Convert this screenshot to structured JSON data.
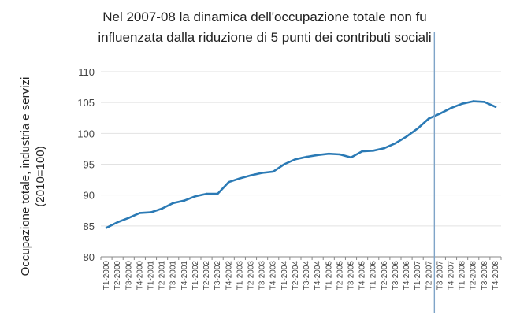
{
  "chart_data": {
    "type": "line",
    "title": "Nel 2007-08 la dinamica dell'occupazione totale non fu influenzata dalla riduzione di 5 punti dei contributi sociali",
    "title_lines": [
      "Nel 2007-08 la dinamica dell'occupazione totale non fu",
      "influenzata dalla riduzione di 5 punti dei contributi sociali"
    ],
    "ylabel": "Occupazione totale, industria e servizi (2010=100)",
    "ylabel_lines": [
      "Occupazione totale, industria e servizi",
      "(2010=100)"
    ],
    "xlabel": "",
    "ylim": [
      80,
      110
    ],
    "yticks": [
      80,
      85,
      90,
      95,
      100,
      105,
      110
    ],
    "grid": true,
    "legend": "none",
    "categories": [
      "T1-2000",
      "T2-2000",
      "T3-2000",
      "T4-2000",
      "T1-2001",
      "T2-2001",
      "T3-2001",
      "T4-2001",
      "T1-2002",
      "T2-2002",
      "T3-2002",
      "T4-2002",
      "T1-2003",
      "T2-2003",
      "T3-2003",
      "T4-2003",
      "T1-2004",
      "T2-2004",
      "T3-2004",
      "T4-2004",
      "T1-2005",
      "T2-2005",
      "T3-2005",
      "T4-2005",
      "T1-2006",
      "T2-2006",
      "T3-2006",
      "T4-2006",
      "T1-2007",
      "T2-2007",
      "T3-2007",
      "T4-2007",
      "T1-2008",
      "T2-2008",
      "T3-2008",
      "T4-2008"
    ],
    "series": [
      {
        "values": [
          84.7,
          85.6,
          86.3,
          87.1,
          87.2,
          87.8,
          88.7,
          89.1,
          89.8,
          90.2,
          90.2,
          92.1,
          92.7,
          93.2,
          93.6,
          93.8,
          95.0,
          95.8,
          96.2,
          96.5,
          96.7,
          96.6,
          96.1,
          97.1,
          97.2,
          97.6,
          98.4,
          99.5,
          100.8,
          102.4,
          103.2,
          104.1,
          104.8,
          105.2,
          105.1,
          104.3
        ],
        "color": "#2b7ab5"
      }
    ],
    "marker_line": {
      "position_between": [
        "T2-2007",
        "T3-2007"
      ],
      "color": "#7fa4c8"
    },
    "colors": {
      "line": "#2b7ab5",
      "grid": "#e2e2e2",
      "axis": "#888888",
      "marker": "#7fa4c8"
    }
  }
}
